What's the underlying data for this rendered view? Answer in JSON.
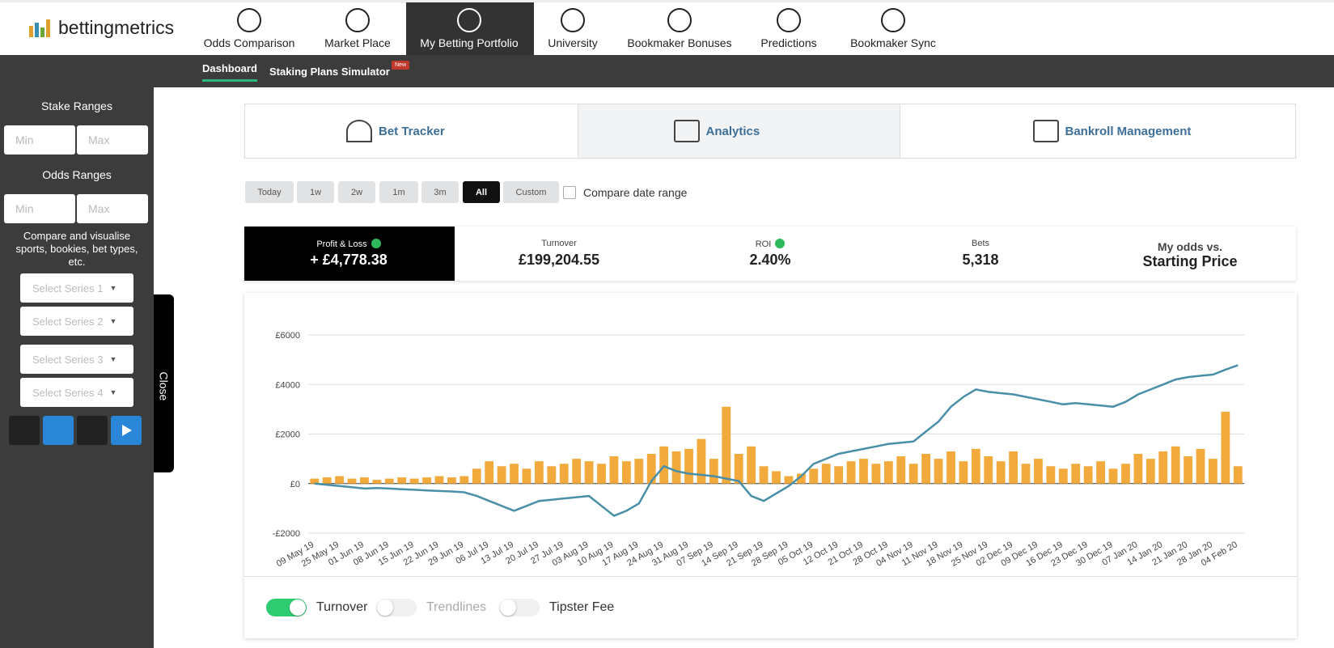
{
  "logo": "bettingmetrics",
  "nav": [
    "Odds Comparison",
    "Market Place",
    "My Betting Portfolio",
    "University",
    "Bookmaker Bonuses",
    "Predictions",
    "Bookmaker Sync"
  ],
  "subnav": {
    "items": [
      "Dashboard",
      "Staking Plans Simulator"
    ],
    "badge": "New"
  },
  "sidebar": {
    "stake_title": "Stake Ranges",
    "odds_title": "Odds Ranges",
    "min": "Min",
    "max": "Max",
    "compare_text": "Compare and visualise sports, bookies, bet types, etc.",
    "series": [
      "Select Series 1",
      "Select Series 2",
      "Select Series 3",
      "Select Series 4"
    ],
    "close": "Close"
  },
  "tabs": [
    "Bet Tracker",
    "Analytics",
    "Bankroll Management"
  ],
  "ranges": [
    "Today",
    "1w",
    "2w",
    "1m",
    "3m",
    "All",
    "Custom"
  ],
  "compare_range": "Compare date range",
  "stats": [
    {
      "label": "Profit & Loss",
      "value": "+ £4,778.38",
      "up": true
    },
    {
      "label": "Turnover",
      "value": "£199,204.55",
      "up": false
    },
    {
      "label": "ROI",
      "value": "2.40%",
      "up": true
    },
    {
      "label": "Bets",
      "value": "5,318",
      "up": false
    },
    {
      "label": "My odds vs.",
      "value": "Starting Price",
      "up": false
    }
  ],
  "toggles": [
    {
      "label": "Turnover",
      "on": true
    },
    {
      "label": "Trendlines",
      "on": false
    },
    {
      "label": "Tipster Fee",
      "on": false
    }
  ],
  "chart_data": {
    "type": "bar+line",
    "categories": [
      "09 May 19",
      null,
      "25 May 19",
      null,
      "01 Jun 19",
      null,
      "08 Jun 19",
      null,
      "15 Jun 19",
      null,
      "22 Jun 19",
      null,
      "29 Jun 19",
      null,
      "06 Jul 19",
      null,
      "13 Jul 19",
      null,
      "20 Jul 19",
      null,
      "27 Jul 19",
      null,
      "03 Aug 19",
      null,
      "10 Aug 19",
      null,
      "17 Aug 19",
      null,
      "24 Aug 19",
      null,
      "31 Aug 19",
      null,
      "07 Sep 19",
      null,
      "14 Sep 19",
      null,
      "21 Sep 19",
      null,
      "28 Sep 19",
      null,
      "05 Oct 19",
      null,
      "12 Oct 19",
      null,
      "21 Oct 19",
      null,
      "28 Oct 19",
      null,
      "04 Nov 19",
      null,
      "11 Nov 19",
      null,
      "18 Nov 19",
      null,
      "25 Nov 19",
      null,
      "02 Dec 19",
      null,
      "09 Dec 19",
      null,
      "16 Dec 19",
      null,
      "23 Dec 19",
      null,
      "30 Dec 19",
      null,
      "07 Jan 20",
      null,
      "14 Jan 20",
      null,
      "21 Jan 20",
      null,
      "28 Jan 20",
      null,
      "04 Feb 20"
    ],
    "series": [
      {
        "name": "Turnover",
        "kind": "bar",
        "color": "#f2aa3c",
        "values": [
          200,
          250,
          300,
          200,
          250,
          150,
          200,
          250,
          200,
          250,
          300,
          250,
          300,
          600,
          900,
          700,
          800,
          600,
          900,
          700,
          800,
          1000,
          900,
          800,
          1100,
          900,
          1000,
          1200,
          1500,
          1300,
          1400,
          1800,
          1000,
          3100,
          1200,
          1500,
          700,
          500,
          300,
          400,
          600,
          800,
          700,
          900,
          1000,
          800,
          900,
          1100,
          800,
          1200,
          1000,
          1300,
          900,
          1400,
          1100,
          900,
          1300,
          800,
          1000,
          700,
          600,
          800,
          700,
          900,
          600,
          800,
          1200,
          1000,
          1300,
          1500,
          1100,
          1400,
          1000,
          2900,
          700
        ]
      },
      {
        "name": "Profit & Loss",
        "kind": "line",
        "color": "#4a8fa8",
        "values": [
          0,
          -50,
          -100,
          -150,
          -200,
          -180,
          -200,
          -230,
          -250,
          -280,
          -300,
          -320,
          -350,
          -500,
          -700,
          -900,
          -1100,
          -900,
          -700,
          -650,
          -600,
          -550,
          -500,
          -900,
          -1300,
          -1100,
          -800,
          100,
          700,
          500,
          400,
          350,
          300,
          200,
          100,
          -500,
          -700,
          -400,
          -100,
          300,
          800,
          1000,
          1200,
          1300,
          1400,
          1500,
          1600,
          1650,
          1700,
          2100,
          2500,
          3100,
          3500,
          3800,
          3700,
          3650,
          3600,
          3500,
          3400,
          3300,
          3200,
          3250,
          3200,
          3150,
          3100,
          3300,
          3600,
          3800,
          4000,
          4200,
          4300,
          4350,
          4400,
          4600,
          4778
        ]
      }
    ],
    "ylim": [
      -2000,
      6000
    ],
    "yticks": [
      {
        "value": -2000,
        "label": "-£2000"
      },
      {
        "value": 0,
        "label": "£0"
      },
      {
        "value": 2000,
        "label": "£2000"
      },
      {
        "value": 4000,
        "label": "£4000"
      },
      {
        "value": 6000,
        "label": "£6000"
      }
    ],
    "grid": true
  }
}
